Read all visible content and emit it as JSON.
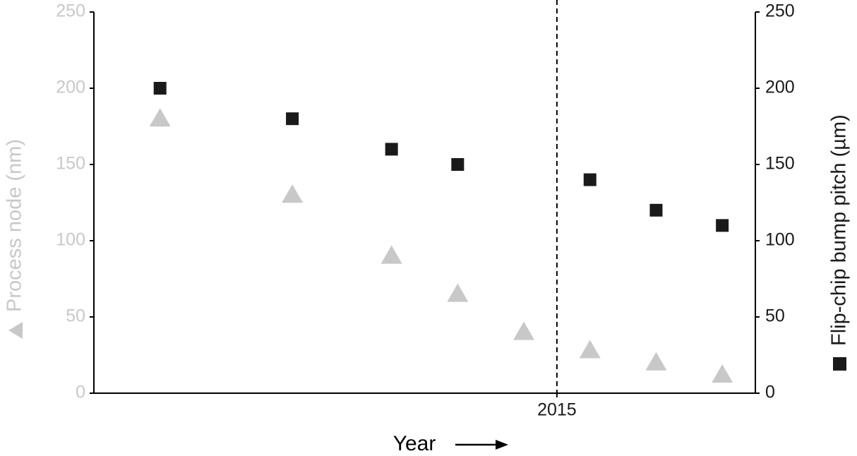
{
  "chart_data": {
    "type": "scatter",
    "x_label": "Year",
    "xlim": [
      2008,
      2018
    ],
    "xticks": [
      2015
    ],
    "vline": 2015,
    "ylim": [
      0,
      250
    ],
    "yticks": [
      0,
      50,
      100,
      150,
      200,
      250
    ],
    "y2lim": [
      0,
      250
    ],
    "y2ticks": [
      0,
      50,
      100,
      150,
      200,
      250
    ],
    "series": [
      {
        "name": "Process node (nm)",
        "color": "#c8c8c8",
        "marker": "triangle",
        "x": [
          2009,
          2011,
          2012.5,
          2013.5,
          2014.5,
          2015.5,
          2016.5,
          2017.5
        ],
        "values": [
          180,
          130,
          90,
          65,
          40,
          28,
          20,
          12
        ]
      },
      {
        "name": "Flip-chip bump pitch (µm)",
        "color": "#1a1a1a",
        "marker": "square",
        "axis": "y2",
        "x": [
          2009,
          2011,
          2012.5,
          2013.5,
          2015.5,
          2016.5,
          2017.5
        ],
        "values": [
          200,
          180,
          160,
          150,
          140,
          120,
          110
        ]
      }
    ]
  }
}
